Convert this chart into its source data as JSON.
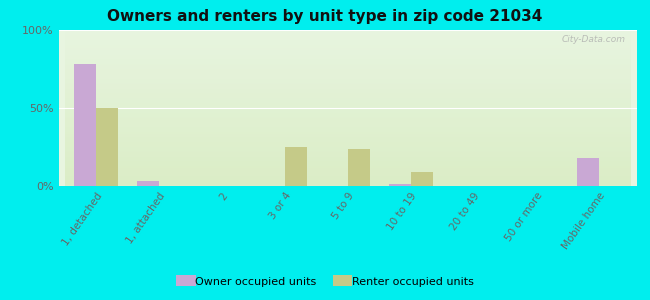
{
  "title": "Owners and renters by unit type in zip code 21034",
  "categories": [
    "1, detached",
    "1, attached",
    "2",
    "3 or 4",
    "5 to 9",
    "10 to 19",
    "20 to 49",
    "50 or more",
    "Mobile home"
  ],
  "owner_values": [
    78,
    3,
    0,
    0,
    0,
    1,
    0,
    0,
    18
  ],
  "renter_values": [
    50,
    0,
    0,
    25,
    24,
    9,
    0,
    0,
    0
  ],
  "owner_color": "#c9a8d4",
  "renter_color": "#c5ca88",
  "background_chart_top": "#e8f5e0",
  "background_chart_bottom": "#d8ecc0",
  "background_outer": "#00eeee",
  "ylim": [
    0,
    100
  ],
  "yticks": [
    0,
    50,
    100
  ],
  "ytick_labels": [
    "0%",
    "50%",
    "100%"
  ],
  "legend_owner": "Owner occupied units",
  "legend_renter": "Renter occupied units",
  "bar_width": 0.35,
  "watermark": "City-Data.com"
}
